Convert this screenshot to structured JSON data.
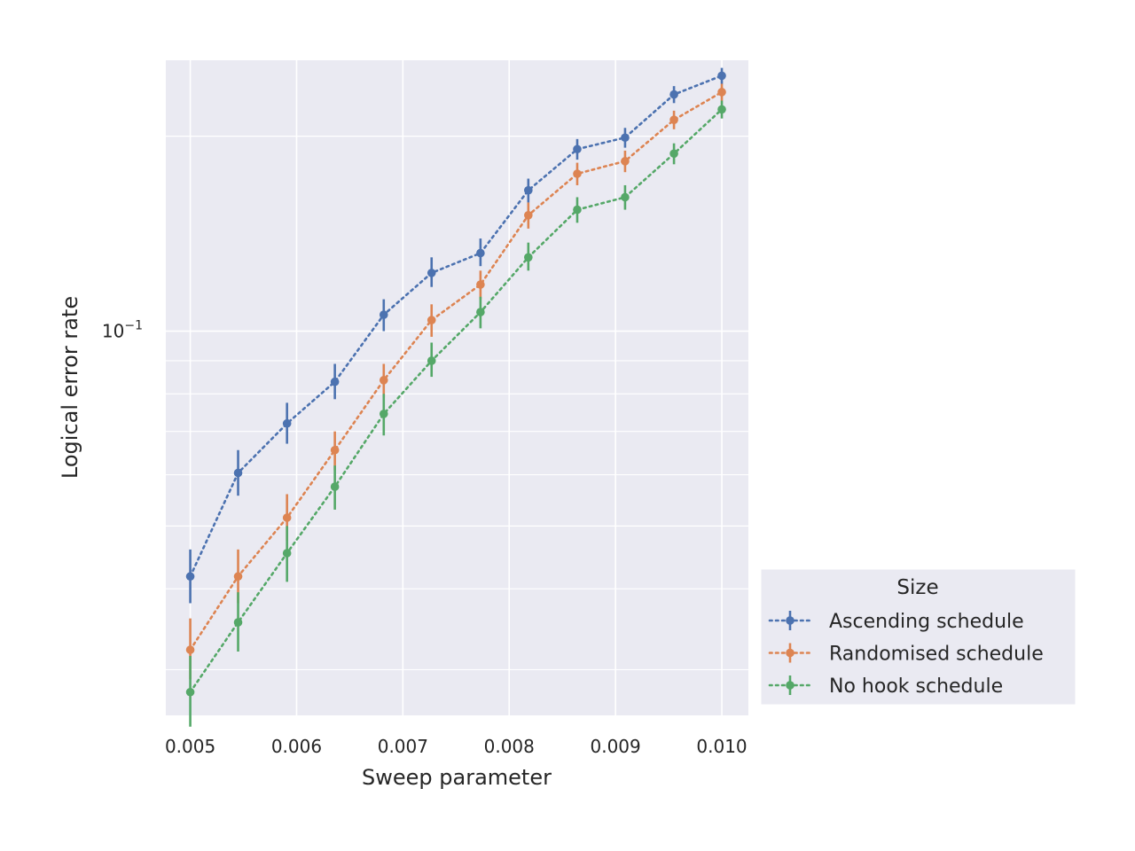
{
  "chart_data": {
    "type": "line",
    "xlabel": "Sweep parameter",
    "ylabel": "Logical error rate",
    "xlim": [
      0.00477,
      0.01025
    ],
    "ylim": [
      0.0255,
      0.262
    ],
    "yscale": "log",
    "grid": true,
    "x_ticks": [
      "0.005",
      "0.006",
      "0.007",
      "0.008",
      "0.009",
      "0.010"
    ],
    "x_tick_values": [
      0.005,
      0.006,
      0.007,
      0.008,
      0.009,
      0.01
    ],
    "y_ticks": [
      {
        "base": "10",
        "exp": "−1",
        "value": 0.1
      }
    ],
    "y_minor_tick_values": [
      0.03,
      0.04,
      0.05,
      0.06,
      0.07,
      0.08,
      0.09,
      0.2
    ],
    "x": [
      0.005,
      0.00545,
      0.00591,
      0.00636,
      0.00682,
      0.00727,
      0.00773,
      0.00818,
      0.00864,
      0.00909,
      0.00955,
      0.01
    ],
    "legend": {
      "title": "Size",
      "position": "right"
    },
    "series": [
      {
        "name": "Ascending schedule",
        "color": "#4c72b0",
        "values": [
          0.0418,
          0.0604,
          0.072,
          0.0835,
          0.106,
          0.123,
          0.132,
          0.165,
          0.191,
          0.199,
          0.232,
          0.248
        ],
        "err_low": [
          0.038,
          0.0557,
          0.067,
          0.0785,
          0.1,
          0.117,
          0.126,
          0.158,
          0.184,
          0.192,
          0.225,
          0.241
        ],
        "err_high": [
          0.046,
          0.0655,
          0.0775,
          0.089,
          0.112,
          0.13,
          0.139,
          0.172,
          0.198,
          0.206,
          0.239,
          0.255
        ]
      },
      {
        "name": "Randomised schedule",
        "color": "#dd8452",
        "values": [
          0.0322,
          0.0418,
          0.0515,
          0.0655,
          0.084,
          0.104,
          0.118,
          0.151,
          0.175,
          0.183,
          0.212,
          0.234
        ],
        "err_low": [
          0.029,
          0.038,
          0.0475,
          0.061,
          0.079,
          0.098,
          0.112,
          0.144,
          0.168,
          0.176,
          0.205,
          0.227
        ],
        "err_high": [
          0.036,
          0.046,
          0.056,
          0.07,
          0.089,
          0.11,
          0.124,
          0.158,
          0.182,
          0.19,
          0.219,
          0.241
        ]
      },
      {
        "name": "No hook schedule",
        "color": "#55a868",
        "values": [
          0.0277,
          0.0355,
          0.0454,
          0.0575,
          0.0745,
          0.09,
          0.107,
          0.13,
          0.154,
          0.161,
          0.188,
          0.22
        ],
        "err_low": [
          0.0245,
          0.032,
          0.041,
          0.053,
          0.069,
          0.085,
          0.101,
          0.124,
          0.147,
          0.154,
          0.181,
          0.213
        ],
        "err_high": [
          0.0315,
          0.0395,
          0.05,
          0.062,
          0.08,
          0.096,
          0.113,
          0.137,
          0.161,
          0.168,
          0.195,
          0.227
        ]
      }
    ]
  }
}
